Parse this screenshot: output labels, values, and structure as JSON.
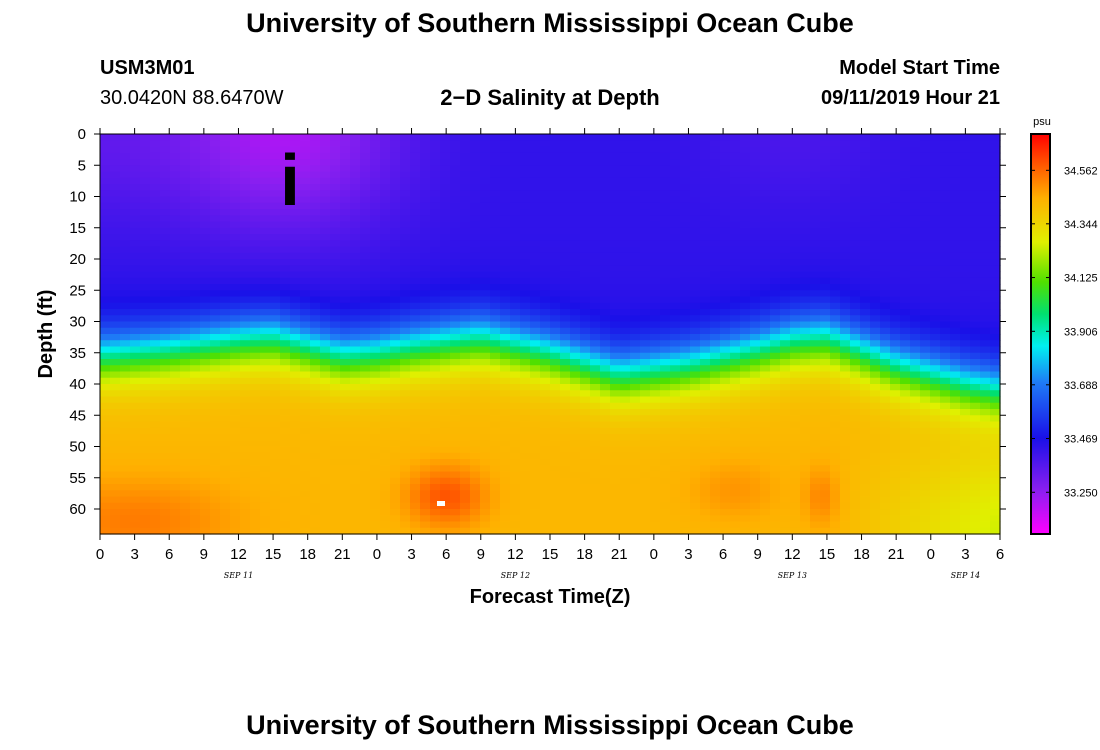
{
  "page": {
    "title_top": "University of Southern Mississippi Ocean Cube",
    "title_bottom": "University of Southern Mississippi Ocean Cube",
    "station_id": "USM3M01",
    "coordinates": "30.0420N 88.6470W",
    "plot_title": "2−D Salinity at Depth",
    "model_start_label": "Model Start Time",
    "model_start_value": "09/11/2019 Hour 21"
  },
  "chart_data": {
    "type": "heatmap",
    "title": "2-D Salinity at Depth",
    "xlabel": "Forecast Time(Z)",
    "ylabel": "Depth (ft)",
    "colorbar_unit": "psu",
    "x_range_hours": [
      0,
      78
    ],
    "x_tick_labels": [
      "0",
      "3",
      "6",
      "9",
      "12",
      "15",
      "18",
      "21",
      "0",
      "3",
      "6",
      "9",
      "12",
      "15",
      "18",
      "21",
      "0",
      "3",
      "6",
      "9",
      "12",
      "15",
      "18",
      "21",
      "0",
      "3",
      "6"
    ],
    "date_labels": [
      {
        "label": "SEP 11",
        "hour": 12
      },
      {
        "label": "SEP 12",
        "hour": 36
      },
      {
        "label": "SEP 13",
        "hour": 60
      },
      {
        "label": "SEP 14",
        "hour": 75
      }
    ],
    "y_range_ft": [
      0,
      64
    ],
    "y_ticks": [
      0,
      5,
      10,
      15,
      20,
      25,
      30,
      35,
      40,
      45,
      50,
      55,
      60
    ],
    "colorbar_ticks": [
      33.25,
      33.469,
      33.688,
      33.906,
      34.125,
      34.344,
      34.562
    ],
    "colorbar_tick_labels": [
      "33.250",
      "33.469",
      "33.688",
      "33.906",
      "34.125",
      "34.344",
      "34.562"
    ],
    "value_range": [
      33.08,
      34.71
    ],
    "halocline_depth_ft": [
      [
        0,
        35.5
      ],
      [
        6,
        34.5
      ],
      [
        12,
        33
      ],
      [
        15,
        32.5
      ],
      [
        21,
        35.5
      ],
      [
        24,
        35
      ],
      [
        27,
        34
      ],
      [
        33,
        32.5
      ],
      [
        39,
        35
      ],
      [
        45,
        38.5
      ],
      [
        51,
        37
      ],
      [
        57,
        34.5
      ],
      [
        60,
        33
      ],
      [
        63,
        32.5
      ],
      [
        69,
        37
      ],
      [
        75,
        40
      ],
      [
        78,
        41
      ]
    ],
    "annotations": [
      {
        "label": "i",
        "hour": 16.5,
        "depth_ft": 6
      }
    ]
  }
}
